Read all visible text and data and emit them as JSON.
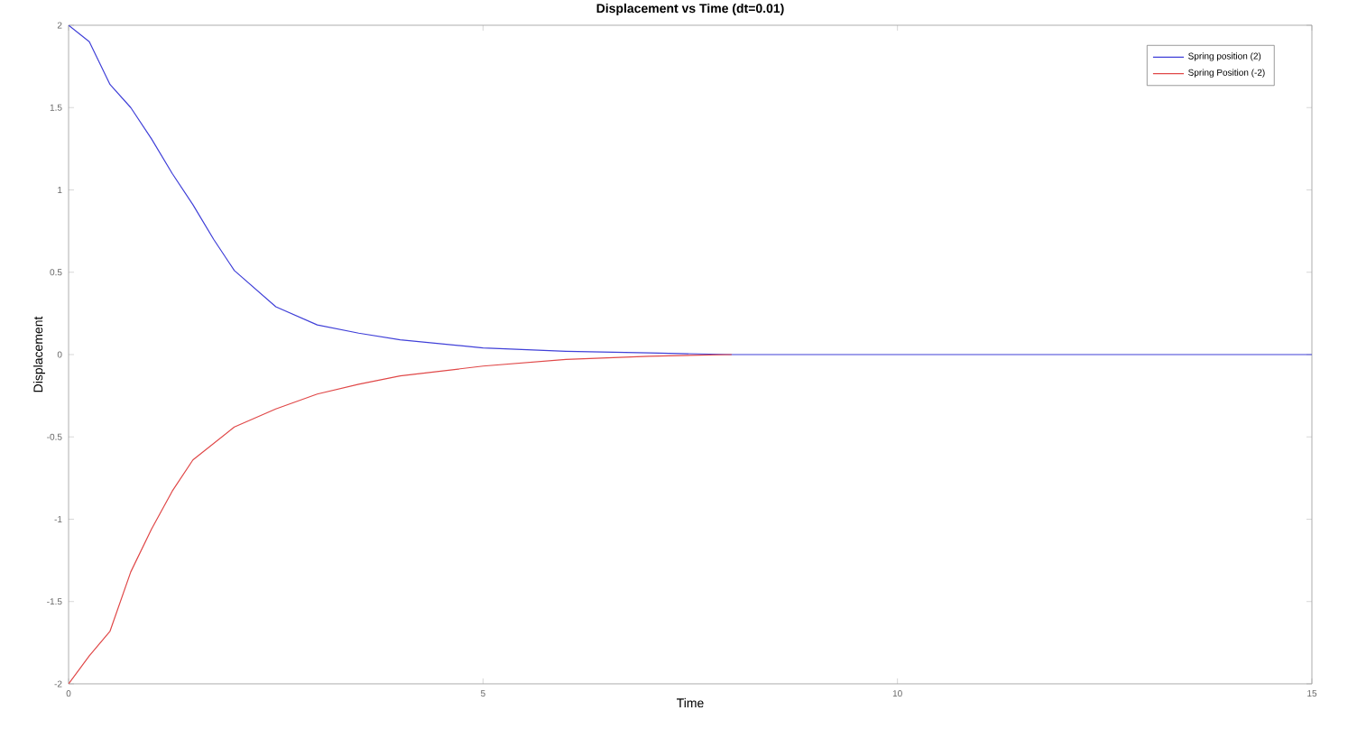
{
  "chart_data": {
    "type": "line",
    "title": "Displacement vs Time (dt=0.01)",
    "xlabel": "Time",
    "ylabel": "Displacement",
    "xlim": [
      0,
      15
    ],
    "xticks": [
      0,
      5,
      10,
      15
    ],
    "ylim": [
      -2,
      2
    ],
    "yticks": [
      -2,
      -1.5,
      -1,
      -0.5,
      0,
      0.5,
      1,
      1.5,
      2
    ],
    "legend": "top right",
    "grid": false,
    "marker": "none",
    "line_style": "solid",
    "series": [
      {
        "name": "Spring position (2)",
        "color": "#4040d8",
        "x": [
          0,
          0.25,
          0.5,
          0.75,
          1,
          1.25,
          1.5,
          1.75,
          2,
          2.5,
          3,
          3.5,
          4,
          5,
          6,
          7,
          8,
          10,
          15
        ],
        "values": [
          2,
          1.9,
          1.64,
          1.5,
          1.31,
          1.1,
          0.91,
          0.7,
          0.51,
          0.29,
          0.18,
          0.13,
          0.09,
          0.04,
          0.02,
          0.01,
          0,
          0,
          0
        ]
      },
      {
        "name": "Spring Position (-2)",
        "color": "#e04848",
        "x": [
          0,
          0.25,
          0.5,
          0.75,
          1,
          1.25,
          1.5,
          2,
          2.5,
          3,
          3.5,
          4,
          5,
          6,
          7,
          8
        ],
        "values": [
          -2,
          -1.83,
          -1.68,
          -1.32,
          -1.06,
          -0.83,
          -0.64,
          -0.44,
          -0.33,
          -0.24,
          -0.18,
          -0.13,
          -0.07,
          -0.03,
          -0.01,
          0
        ]
      }
    ]
  }
}
